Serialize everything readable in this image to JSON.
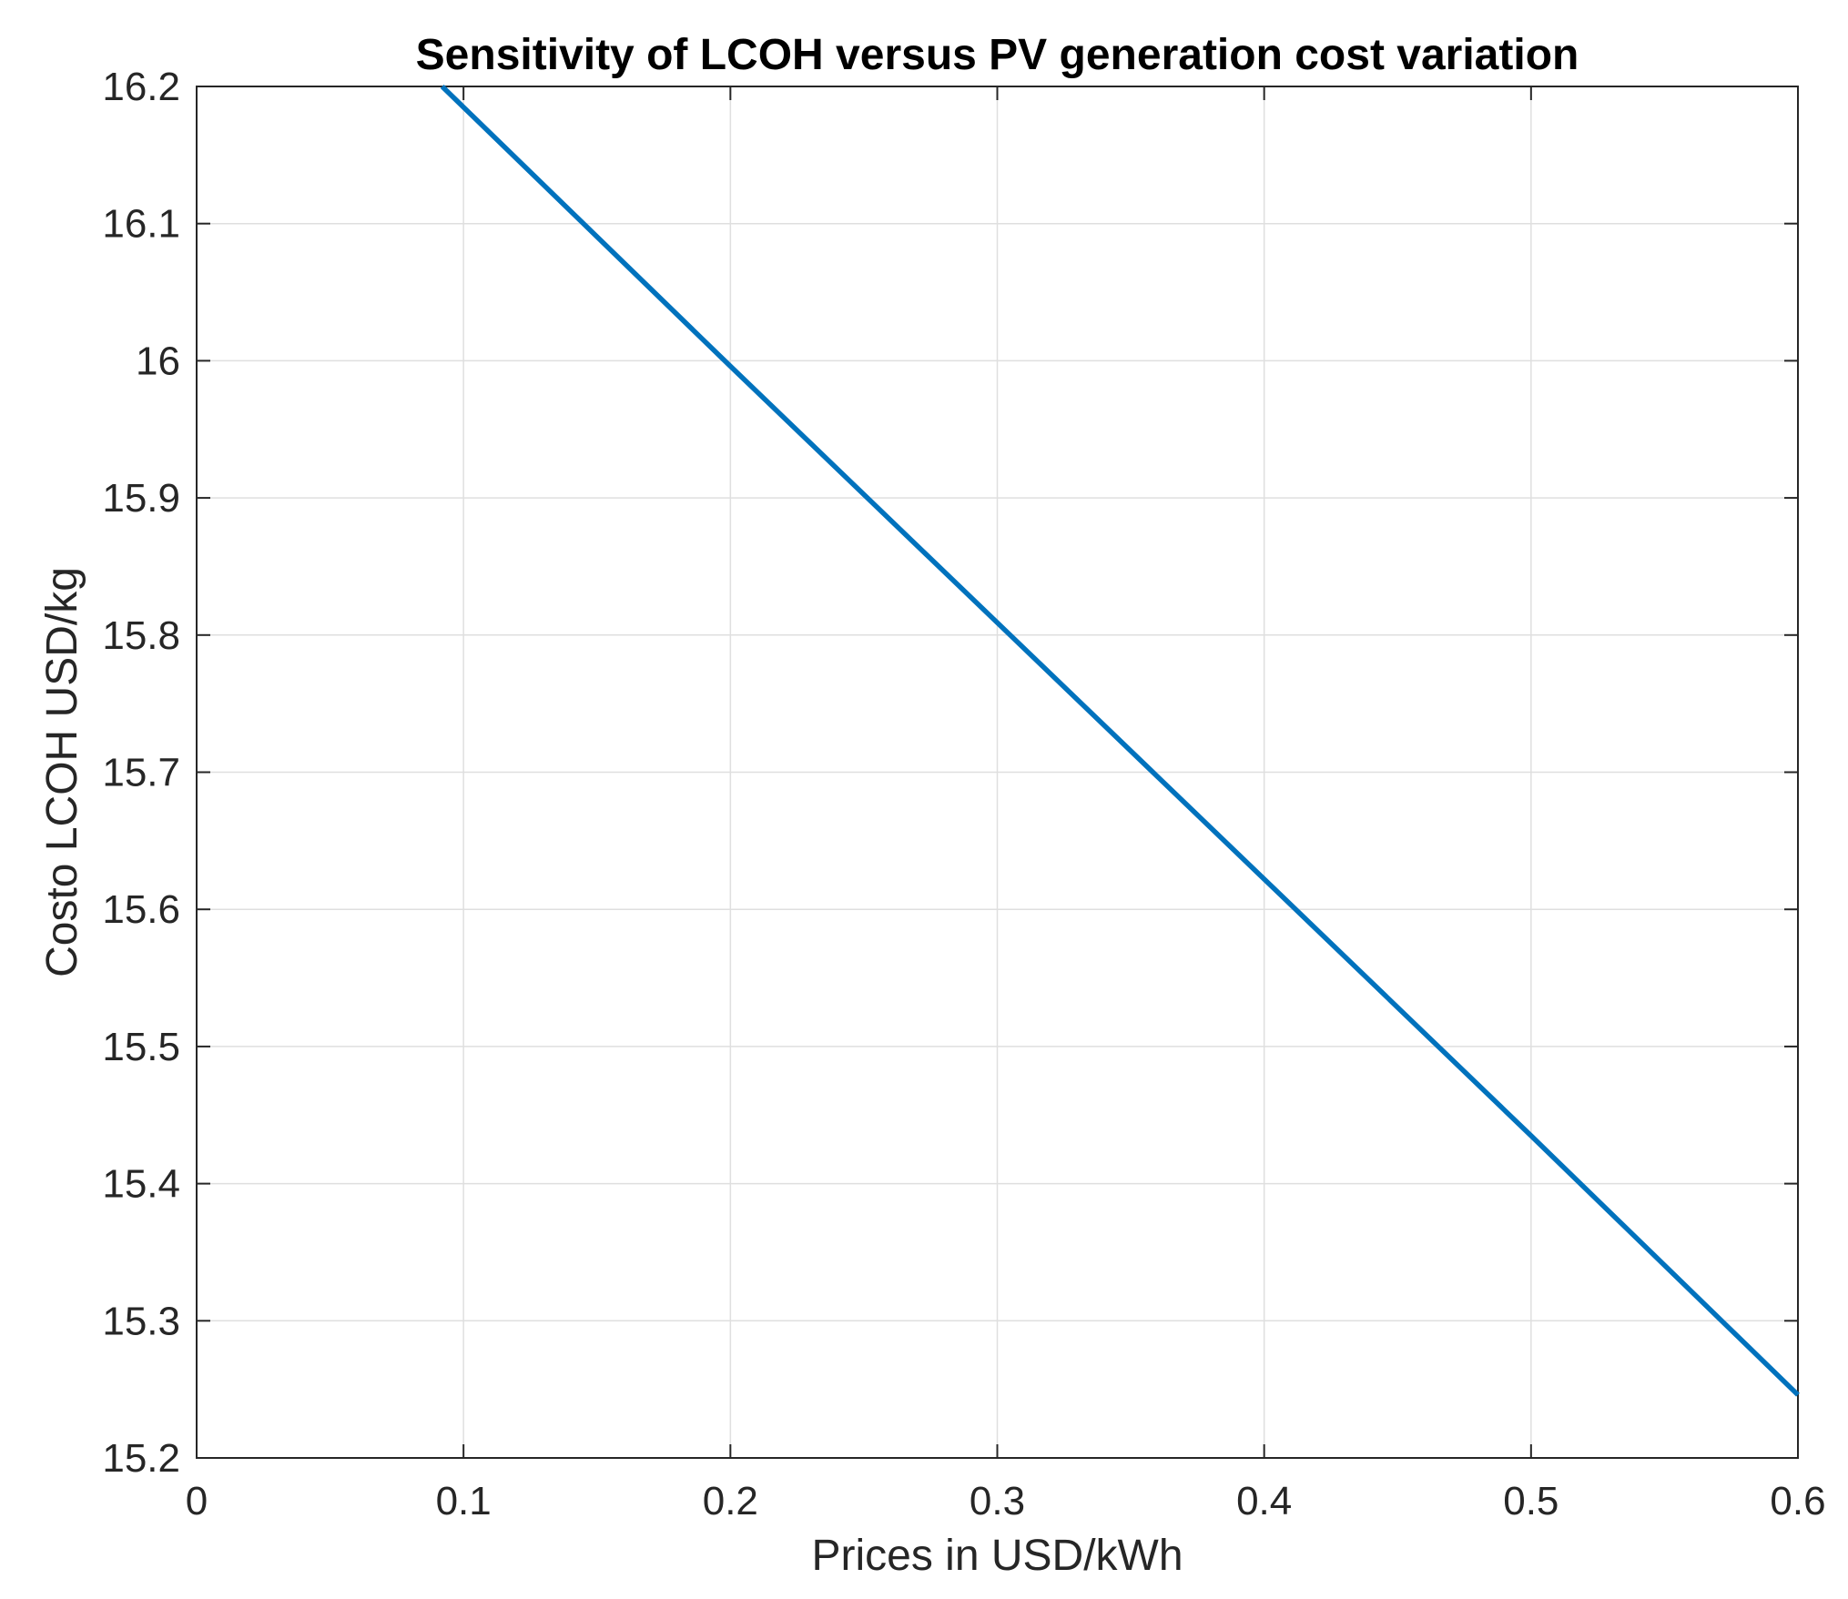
{
  "chart_data": {
    "type": "line",
    "title": "Sensitivity of LCOH versus PV generation cost variation",
    "xlabel": "Prices in USD/kWh",
    "ylabel": "Costo LCOH USD/kg",
    "xlim": [
      0,
      0.6
    ],
    "ylim": [
      15.2,
      16.2
    ],
    "xticks": [
      0,
      0.1,
      0.2,
      0.3,
      0.4,
      0.5,
      0.6
    ],
    "yticks": [
      15.2,
      15.3,
      15.4,
      15.5,
      15.6,
      15.7,
      15.8,
      15.9,
      16,
      16.1,
      16.2
    ],
    "xtick_labels": [
      "0",
      "0.1",
      "0.2",
      "0.3",
      "0.4",
      "0.5",
      "0.6"
    ],
    "ytick_labels": [
      "15.2",
      "15.3",
      "15.4",
      "15.5",
      "15.6",
      "15.7",
      "15.8",
      "15.9",
      "16",
      "16.1",
      "16.2"
    ],
    "grid": true,
    "series": [
      {
        "name": "LCOH",
        "color": "#0072BD",
        "x": [
          0.092,
          0.2,
          0.3,
          0.4,
          0.5,
          0.6
        ],
        "y": [
          16.2,
          15.996,
          15.809,
          15.622,
          15.435,
          15.246
        ]
      }
    ]
  }
}
